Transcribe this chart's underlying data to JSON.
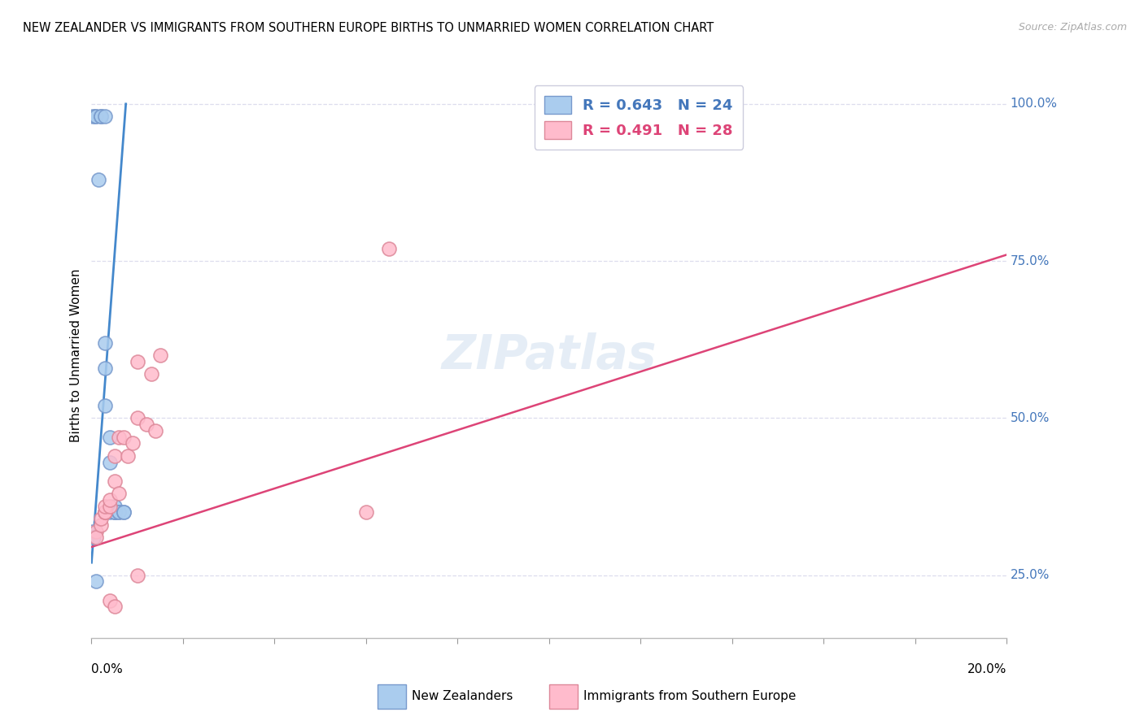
{
  "title": "NEW ZEALANDER VS IMMIGRANTS FROM SOUTHERN EUROPE BIRTHS TO UNMARRIED WOMEN CORRELATION CHART",
  "source": "Source: ZipAtlas.com",
  "ylabel": "Births to Unmarried Women",
  "r_nz": 0.643,
  "n_nz": 24,
  "r_im": 0.491,
  "n_im": 28,
  "blue_scatter_color": "#aaccee",
  "blue_scatter_edge": "#7799cc",
  "pink_scatter_color": "#ffbbcc",
  "pink_scatter_edge": "#dd8899",
  "blue_line_color": "#4488cc",
  "pink_line_color": "#dd4477",
  "grid_color": "#ddddee",
  "nz_x": [
    0.0003,
    0.0008,
    0.001,
    0.0015,
    0.002,
    0.002,
    0.003,
    0.003,
    0.003,
    0.003,
    0.004,
    0.004,
    0.004,
    0.005,
    0.005,
    0.005,
    0.005,
    0.006,
    0.006,
    0.007,
    0.007,
    0.0003,
    0.0005,
    0.001
  ],
  "nz_y": [
    0.98,
    0.98,
    0.98,
    0.88,
    0.98,
    0.98,
    0.98,
    0.62,
    0.58,
    0.52,
    0.47,
    0.43,
    0.35,
    0.35,
    0.36,
    0.35,
    0.35,
    0.35,
    0.35,
    0.35,
    0.35,
    0.32,
    0.31,
    0.24
  ],
  "im_x": [
    0.001,
    0.001,
    0.002,
    0.002,
    0.003,
    0.003,
    0.003,
    0.003,
    0.004,
    0.004,
    0.005,
    0.005,
    0.006,
    0.006,
    0.007,
    0.008,
    0.009,
    0.01,
    0.01,
    0.012,
    0.013,
    0.014,
    0.015,
    0.06,
    0.065,
    0.004,
    0.005,
    0.01
  ],
  "im_y": [
    0.32,
    0.31,
    0.33,
    0.34,
    0.35,
    0.35,
    0.35,
    0.36,
    0.36,
    0.37,
    0.4,
    0.44,
    0.38,
    0.47,
    0.47,
    0.44,
    0.46,
    0.5,
    0.59,
    0.49,
    0.57,
    0.48,
    0.6,
    0.35,
    0.77,
    0.21,
    0.2,
    0.25
  ],
  "xmin": 0.0,
  "xmax": 0.2,
  "ymin": 0.15,
  "ymax": 1.05,
  "ytick_vals": [
    0.25,
    0.5,
    0.75,
    1.0
  ],
  "ytick_labels": [
    "25.0%",
    "50.0%",
    "75.0%",
    "100.0%"
  ],
  "nz_trend_x": [
    0.0,
    0.0075
  ],
  "nz_trend_y": [
    0.27,
    1.0
  ],
  "im_trend_x": [
    0.0,
    0.2
  ],
  "im_trend_y": [
    0.295,
    0.76
  ]
}
